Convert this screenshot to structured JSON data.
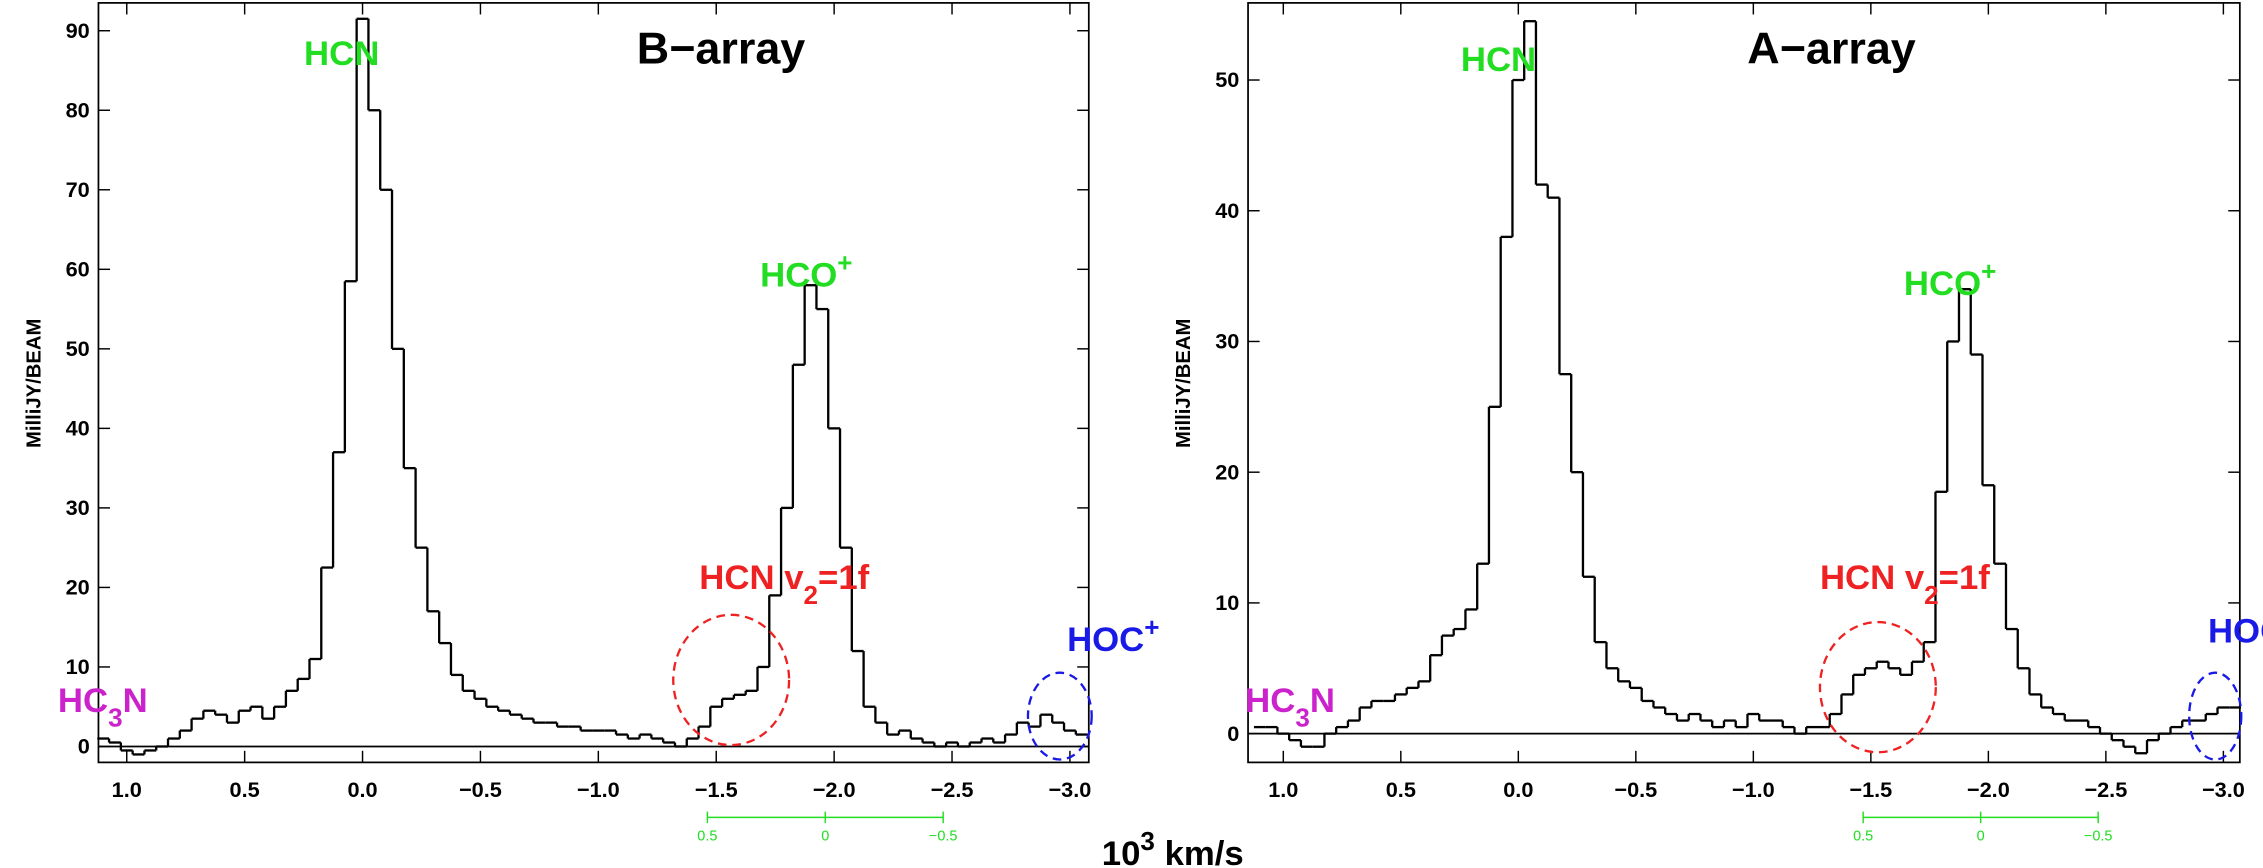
{
  "chart_data": [
    {
      "type": "step",
      "title": "B−array",
      "ylabel": "MilliJY/BEAM",
      "xlim": [
        1.12,
        -3.08
      ],
      "ylim": [
        -2,
        93.5
      ],
      "xticks": [
        {
          "value": 1.0,
          "label": "1.0"
        },
        {
          "value": 0.5,
          "label": "0.5"
        },
        {
          "value": 0.0,
          "label": "0.0"
        },
        {
          "value": -0.5,
          "label": "−0.5"
        },
        {
          "value": -1.0,
          "label": "−1.0"
        },
        {
          "value": -1.5,
          "label": "−1.5"
        },
        {
          "value": -2.0,
          "label": "−2.0"
        },
        {
          "value": -2.5,
          "label": "−2.5"
        },
        {
          "value": -3.0,
          "label": "−3.0"
        }
      ],
      "yticks": [
        0,
        10,
        20,
        30,
        40,
        50,
        60,
        70,
        80,
        90
      ],
      "offset_ticks": [
        0.5,
        0,
        {
          "value": -0.5,
          "label": "−0.5"
        }
      ],
      "color": "#000000",
      "x": [
        1.1,
        1.05,
        1.0,
        0.95,
        0.9,
        0.85,
        0.8,
        0.75,
        0.7,
        0.65,
        0.6,
        0.55,
        0.5,
        0.45,
        0.4,
        0.35,
        0.3,
        0.25,
        0.2,
        0.15,
        0.1,
        0.05,
        0.0,
        -0.05,
        -0.1,
        -0.15,
        -0.2,
        -0.25,
        -0.3,
        -0.35,
        -0.4,
        -0.45,
        -0.5,
        -0.55,
        -0.6,
        -0.65,
        -0.7,
        -0.75,
        -0.8,
        -0.85,
        -0.9,
        -0.95,
        -1.0,
        -1.05,
        -1.1,
        -1.15,
        -1.2,
        -1.25,
        -1.3,
        -1.35,
        -1.4,
        -1.45,
        -1.5,
        -1.55,
        -1.6,
        -1.65,
        -1.7,
        -1.75,
        -1.8,
        -1.85,
        -1.9,
        -1.95,
        -2.0,
        -2.05,
        -2.1,
        -2.15,
        -2.2,
        -2.25,
        -2.3,
        -2.35,
        -2.4,
        -2.45,
        -2.5,
        -2.55,
        -2.6,
        -2.65,
        -2.7,
        -2.75,
        -2.8,
        -2.85,
        -2.9,
        -2.95,
        -3.0,
        -3.05
      ],
      "values": [
        1,
        0.5,
        -0.5,
        -1,
        -0.5,
        0,
        1,
        2,
        3.5,
        4.5,
        4,
        3,
        4.5,
        5,
        3.5,
        5,
        7,
        8.5,
        11,
        22.5,
        37,
        58.5,
        91.5,
        80,
        70,
        50,
        35,
        25,
        17,
        13,
        9,
        7,
        6,
        5,
        4.5,
        4,
        3.5,
        3,
        3,
        2.5,
        2.5,
        2,
        2,
        2,
        1.5,
        1,
        1.5,
        1,
        0.5,
        0,
        1,
        2.5,
        5,
        6,
        6.5,
        7,
        10,
        19,
        30,
        48,
        58,
        55,
        40,
        25,
        12,
        5,
        3,
        1.5,
        2,
        1,
        0.5,
        0,
        0.5,
        0,
        0.5,
        1,
        0.5,
        1.5,
        3,
        2.5,
        4,
        3,
        2,
        1.5
      ],
      "annotations": [
        {
          "color": "#22dd22",
          "parts": [
            {
              "text": "HCN"
            }
          ]
        },
        {
          "color": "#22dd22",
          "parts": [
            {
              "text": "HCO"
            },
            {
              "text": "+",
              "shift": "super"
            }
          ]
        },
        {
          "color": "#ee2222",
          "parts": [
            {
              "text": "HCN v"
            },
            {
              "text": "2",
              "shift": "sub"
            },
            {
              "text": "=1f"
            }
          ]
        },
        {
          "color": "#1a1ae6",
          "parts": [
            {
              "text": "HOC"
            },
            {
              "text": "+",
              "shift": "super"
            }
          ]
        },
        {
          "color": "#cc22cc",
          "parts": [
            {
              "text": "HC"
            },
            {
              "text": "3",
              "shift": "sub"
            },
            {
              "text": "N"
            }
          ]
        }
      ]
    },
    {
      "type": "step",
      "title": "A−array",
      "ylabel": "MilliJY/BEAM",
      "xlim": [
        1.15,
        -3.07
      ],
      "ylim": [
        -2.2,
        55.9
      ],
      "xticks": [
        {
          "value": 1.0,
          "label": "1.0"
        },
        {
          "value": 0.5,
          "label": "0.5"
        },
        {
          "value": 0.0,
          "label": "0.0"
        },
        {
          "value": -0.5,
          "label": "−0.5"
        },
        {
          "value": -1.0,
          "label": "−1.0"
        },
        {
          "value": -1.5,
          "label": "−1.5"
        },
        {
          "value": -2.0,
          "label": "−2.0"
        },
        {
          "value": -2.5,
          "label": "−2.5"
        },
        {
          "value": -3.0,
          "label": "−3.0"
        }
      ],
      "yticks": [
        0,
        10,
        20,
        30,
        40,
        50
      ],
      "offset_ticks": [
        0.5,
        0,
        {
          "value": -0.5,
          "label": "−0.5"
        }
      ],
      "color": "#000000",
      "x": [
        1.1,
        1.05,
        1.0,
        0.95,
        0.9,
        0.85,
        0.8,
        0.75,
        0.7,
        0.65,
        0.6,
        0.55,
        0.5,
        0.45,
        0.4,
        0.35,
        0.3,
        0.25,
        0.2,
        0.15,
        0.1,
        0.05,
        0.0,
        -0.05,
        -0.1,
        -0.15,
        -0.2,
        -0.25,
        -0.3,
        -0.35,
        -0.4,
        -0.45,
        -0.5,
        -0.55,
        -0.6,
        -0.65,
        -0.7,
        -0.75,
        -0.8,
        -0.85,
        -0.9,
        -0.95,
        -1.0,
        -1.05,
        -1.1,
        -1.15,
        -1.2,
        -1.25,
        -1.3,
        -1.35,
        -1.4,
        -1.45,
        -1.5,
        -1.55,
        -1.6,
        -1.65,
        -1.7,
        -1.75,
        -1.8,
        -1.85,
        -1.9,
        -1.95,
        -2.0,
        -2.05,
        -2.1,
        -2.15,
        -2.2,
        -2.25,
        -2.3,
        -2.35,
        -2.4,
        -2.45,
        -2.5,
        -2.55,
        -2.6,
        -2.65,
        -2.7,
        -2.75,
        -2.8,
        -2.85,
        -2.9,
        -2.95,
        -3.0,
        -3.05
      ],
      "values": [
        0.5,
        0.5,
        0,
        -0.5,
        -1,
        -1,
        0,
        0.5,
        1,
        2,
        2.5,
        2.5,
        3,
        3.5,
        4,
        6,
        7.5,
        8,
        9.5,
        13,
        25,
        38,
        50,
        54.5,
        42,
        41,
        27.5,
        20,
        12,
        7,
        5,
        4,
        3.5,
        2.5,
        2,
        1.5,
        1,
        1.5,
        1,
        0.5,
        1,
        0.5,
        1.5,
        1,
        1,
        0.5,
        0,
        0.5,
        0.5,
        1.5,
        3,
        4.5,
        5,
        5.5,
        5,
        4.5,
        5.5,
        7,
        18.5,
        30,
        34,
        29,
        19,
        13,
        8,
        5,
        3,
        2,
        1.5,
        1,
        1,
        0.5,
        0,
        -0.5,
        -1,
        -1.5,
        -0.5,
        0,
        0.5,
        1,
        1,
        1.5,
        2,
        2
      ],
      "annotations": [
        {
          "color": "#22dd22",
          "parts": [
            {
              "text": "HCN"
            }
          ]
        },
        {
          "color": "#22dd22",
          "parts": [
            {
              "text": "HCO"
            },
            {
              "text": "+",
              "shift": "super"
            }
          ]
        },
        {
          "color": "#ee2222",
          "parts": [
            {
              "text": "HCN v"
            },
            {
              "text": "2",
              "shift": "sub"
            },
            {
              "text": "=1f"
            }
          ]
        },
        {
          "color": "#1a1ae6",
          "parts": [
            {
              "text": "HOC"
            },
            {
              "text": "+",
              "shift": "super"
            }
          ]
        },
        {
          "color": "#cc22cc",
          "parts": [
            {
              "text": "HC"
            },
            {
              "text": "3",
              "shift": "sub"
            },
            {
              "text": "N"
            }
          ]
        }
      ]
    }
  ],
  "xlabel": [
    {
      "text": "10"
    },
    {
      "text": "3",
      "shift": "super"
    },
    {
      "text": " km/s"
    }
  ]
}
